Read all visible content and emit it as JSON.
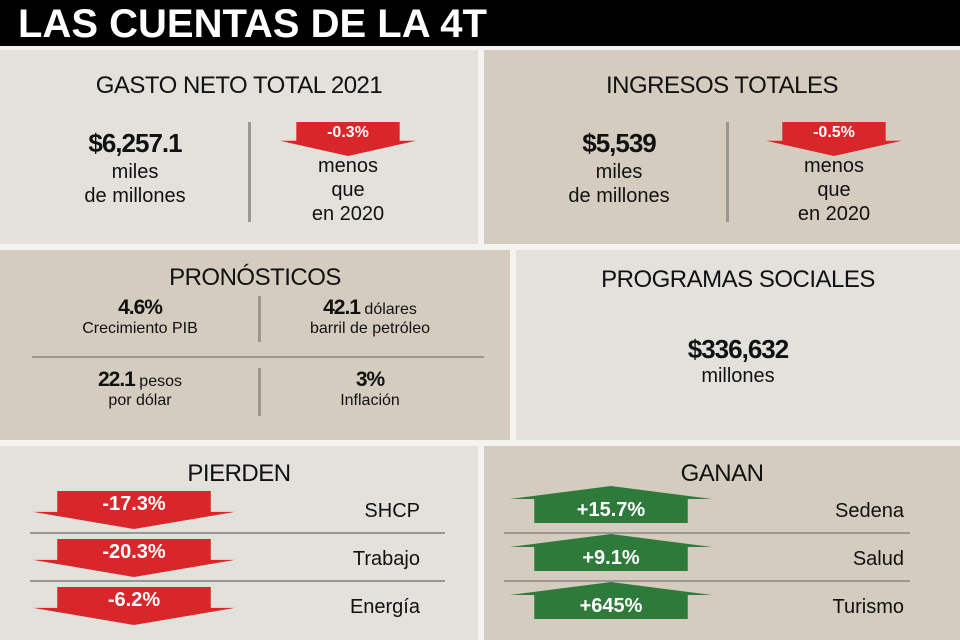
{
  "title": "LAS CUENTAS DE LA 4T",
  "gasto": {
    "heading": "GASTO NETO TOTAL 2021",
    "amount": "$6,257.1",
    "unit1": "miles",
    "unit2": "de millones",
    "change": "-0.3%",
    "note1": "menos",
    "note2": "que",
    "note3": "en 2020"
  },
  "ingresos": {
    "heading": "INGRESOS TOTALES",
    "amount": "$5,539",
    "unit1": "miles",
    "unit2": "de millones",
    "change": "-0.5%",
    "note1": "menos",
    "note2": "que",
    "note3": "en 2020"
  },
  "pronosticos": {
    "heading": "PRONÓSTICOS",
    "items": [
      {
        "value": "4.6%",
        "suffix": "",
        "label": "Crecimiento PIB"
      },
      {
        "value": "42.1",
        "suffix": " dólares",
        "label": "barril de petróleo"
      },
      {
        "value": "22.1",
        "suffix": " pesos",
        "label": "por dólar"
      },
      {
        "value": "3%",
        "suffix": "",
        "label": "Inflación"
      }
    ]
  },
  "programas": {
    "heading": "PROGRAMAS SOCIALES",
    "amount": "$336,632",
    "unit": "millones"
  },
  "pierden": {
    "heading": "PIERDEN",
    "items": [
      {
        "value": "-17.3%",
        "label": "SHCP"
      },
      {
        "value": "-20.3%",
        "label": "Trabajo"
      },
      {
        "value": "-6.2%",
        "label": "Energía"
      }
    ]
  },
  "ganan": {
    "heading": "GANAN",
    "items": [
      {
        "value": "+15.7%",
        "label": "Sedena"
      },
      {
        "value": "+9.1%",
        "label": "Salud"
      },
      {
        "value": "+645%",
        "label": "Turismo"
      }
    ]
  },
  "colors": {
    "red": "#d9262b",
    "green": "#2d7a3b"
  }
}
